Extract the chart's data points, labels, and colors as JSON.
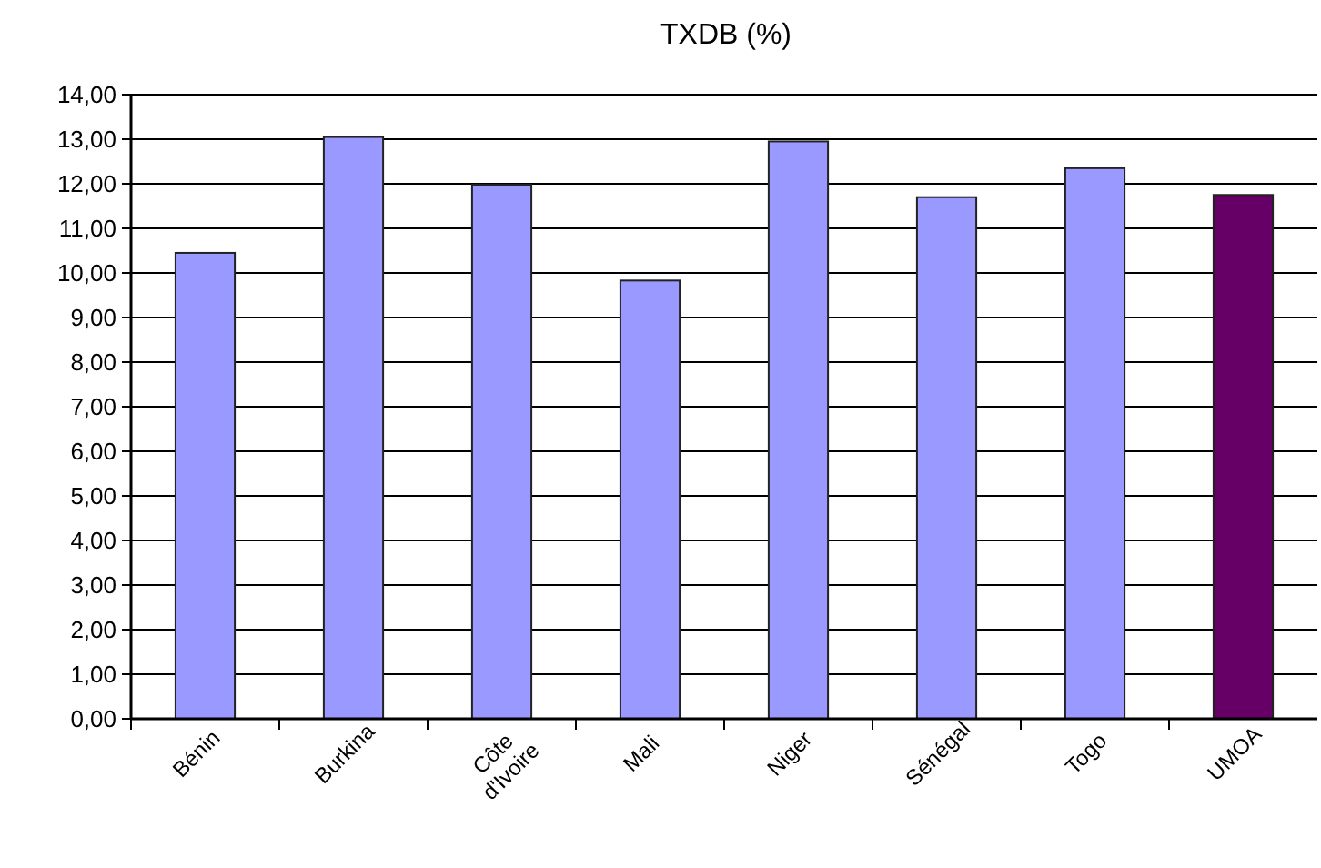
{
  "chart_data": {
    "type": "bar",
    "title": "TXDB (%)",
    "categories": [
      "Bénin",
      "Burkina",
      "Côte d'Ivoire",
      "Mali",
      "Niger",
      "Sénégal",
      "Togo",
      "UMOA"
    ],
    "values": [
      10.45,
      13.05,
      11.98,
      9.83,
      12.95,
      11.7,
      12.35,
      11.75
    ],
    "colors": [
      "#9999ff",
      "#9999ff",
      "#9999ff",
      "#9999ff",
      "#9999ff",
      "#9999ff",
      "#9999ff",
      "#660066"
    ],
    "ylim": [
      0,
      14
    ],
    "yticks": [
      {
        "value": 0,
        "label": "0,00"
      },
      {
        "value": 1,
        "label": "1,00"
      },
      {
        "value": 2,
        "label": "2,00"
      },
      {
        "value": 3,
        "label": "3,00"
      },
      {
        "value": 4,
        "label": "4,00"
      },
      {
        "value": 5,
        "label": "5,00"
      },
      {
        "value": 6,
        "label": "6,00"
      },
      {
        "value": 7,
        "label": "7,00"
      },
      {
        "value": 8,
        "label": "8,00"
      },
      {
        "value": 9,
        "label": "9,00"
      },
      {
        "value": 10,
        "label": "10,00"
      },
      {
        "value": 11,
        "label": "11,00"
      },
      {
        "value": 12,
        "label": "12,00"
      },
      {
        "value": 13,
        "label": "13,00"
      },
      {
        "value": 14,
        "label": "14,00"
      }
    ],
    "grid": "y"
  }
}
